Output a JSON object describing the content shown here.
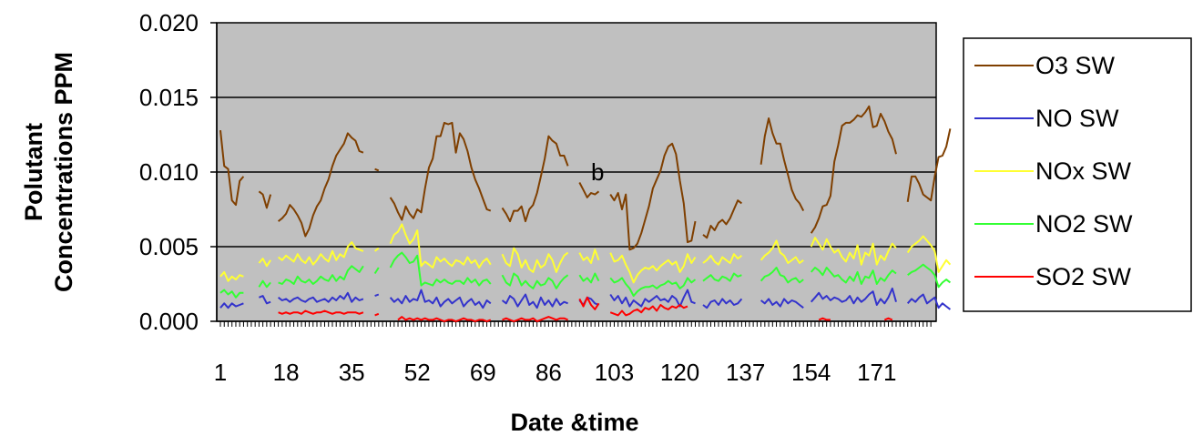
{
  "chart_data": {
    "type": "line",
    "title": "",
    "xlabel": "Date &time",
    "ylabel_line1": "Polutant",
    "ylabel_line2": "Concentrations PPM",
    "ylim": [
      0,
      0.02
    ],
    "xlim": [
      1,
      185
    ],
    "y_ticks": [
      "0.000",
      "0.005",
      "0.010",
      "0.015",
      "0.020"
    ],
    "y_tick_values": [
      0,
      0.005,
      0.01,
      0.015,
      0.02
    ],
    "x_tick_labels": [
      "1",
      "18",
      "35",
      "52",
      "69",
      "86",
      "103",
      "120",
      "137",
      "154",
      "171"
    ],
    "x_tick_values": [
      1,
      18,
      35,
      52,
      69,
      86,
      103,
      120,
      137,
      154,
      171
    ],
    "grid": "horizontal",
    "plot_background": "#c0c0c0",
    "legend_position": "right",
    "annotation": "b",
    "annotation_x": 97,
    "annotation_y": 0.01,
    "series": [
      {
        "name": "O3    SW",
        "color": "#7f3f00",
        "values": [
          0.0128,
          0.0104,
          0.0102,
          0.0081,
          0.0078,
          0.0094,
          0.0097,
          null,
          null,
          null,
          0.0087,
          0.0085,
          0.0076,
          0.0085,
          null,
          0.0067,
          0.0069,
          0.0072,
          0.0078,
          0.0075,
          0.0071,
          0.0066,
          0.0057,
          0.0062,
          0.0071,
          0.0077,
          0.0081,
          0.0089,
          0.0095,
          0.0104,
          0.0111,
          0.0115,
          0.0119,
          0.0126,
          0.0123,
          0.0121,
          0.0114,
          0.0113,
          null,
          null,
          0.0102,
          0.0101,
          null,
          null,
          0.0083,
          0.0079,
          0.0073,
          0.0068,
          0.0077,
          0.0072,
          0.0069,
          0.0075,
          0.0073,
          0.0089,
          0.0103,
          0.0109,
          0.0124,
          0.0124,
          0.0133,
          0.0132,
          0.0133,
          0.0113,
          0.0126,
          0.0122,
          0.0114,
          0.0103,
          0.0095,
          0.0089,
          0.0082,
          0.0075,
          0.0074,
          null,
          null,
          0.0076,
          0.0072,
          0.0067,
          0.0074,
          0.0074,
          0.0077,
          0.0067,
          0.0075,
          0.0078,
          0.0086,
          0.0097,
          0.0109,
          0.0124,
          0.0121,
          0.0119,
          0.0111,
          0.0111,
          0.0104,
          null,
          null,
          0.0093,
          0.0088,
          0.0083,
          0.0086,
          0.0085,
          0.0087,
          null,
          null,
          0.0085,
          0.0081,
          0.0086,
          0.0075,
          0.0085,
          0.0048,
          0.0049,
          0.0052,
          0.0059,
          0.0068,
          0.0077,
          0.0089,
          0.0095,
          0.0101,
          0.0111,
          0.0117,
          0.0119,
          0.0112,
          0.0094,
          0.0079,
          0.0053,
          0.0054,
          0.0067,
          null,
          0.0058,
          0.0056,
          0.0064,
          0.0061,
          0.0066,
          0.0068,
          0.0065,
          0.0069,
          0.0075,
          0.0081,
          0.0079,
          null,
          null,
          null,
          null,
          0.0105,
          0.0124,
          0.0136,
          0.0126,
          0.0119,
          0.0119,
          0.0108,
          0.0098,
          0.0088,
          0.0082,
          0.0079,
          0.0074,
          null,
          0.0059,
          0.0063,
          0.0069,
          0.0077,
          0.0078,
          0.0084,
          0.0107,
          0.0118,
          0.0131,
          0.0133,
          0.0133,
          0.0135,
          0.0138,
          0.0137,
          0.014,
          0.0144,
          0.013,
          0.0131,
          0.0139,
          0.0134,
          0.0127,
          0.0122,
          0.0112,
          null,
          null,
          0.008,
          0.0097,
          0.0097,
          0.0092,
          0.0085,
          0.0083,
          0.0081,
          0.0097,
          0.011,
          0.0111,
          0.0117,
          0.0129
        ]
      },
      {
        "name": "NO   SW",
        "color": "#3333cc",
        "values": [
          0.0009,
          0.0012,
          0.0009,
          0.0012,
          0.001,
          0.0011,
          0.0012,
          null,
          null,
          null,
          0.0016,
          0.0017,
          0.0012,
          0.0013,
          null,
          0.0016,
          0.0014,
          0.0015,
          0.0013,
          0.0015,
          0.0016,
          0.0014,
          0.0013,
          0.0015,
          0.0016,
          0.0013,
          0.0014,
          0.0015,
          0.0013,
          0.0016,
          0.0014,
          0.0017,
          0.0015,
          0.0019,
          0.0013,
          0.0016,
          0.0014,
          0.0015,
          null,
          null,
          0.0017,
          0.0018,
          null,
          null,
          0.0016,
          0.0013,
          0.0015,
          0.0012,
          0.0017,
          0.0013,
          0.0015,
          0.0014,
          0.0021,
          0.0013,
          0.0014,
          0.0012,
          0.0016,
          0.001,
          0.0013,
          0.0015,
          0.0012,
          0.0014,
          0.0016,
          0.001,
          0.0013,
          0.0015,
          0.0011,
          0.0013,
          0.0009,
          0.0014,
          0.0012,
          null,
          null,
          0.0014,
          0.0012,
          0.0017,
          0.0015,
          0.001,
          0.0014,
          0.0018,
          0.0011,
          0.0013,
          0.0009,
          0.0016,
          0.0011,
          0.0014,
          0.001,
          0.0015,
          0.0011,
          0.0013,
          0.0012,
          null,
          null,
          0.0014,
          0.0011,
          0.0016,
          0.0015,
          0.0012,
          0.0011,
          null,
          null,
          0.0018,
          0.0014,
          0.0017,
          0.0012,
          0.0016,
          0.001,
          0.0014,
          0.0012,
          0.001,
          0.0015,
          0.0013,
          0.0015,
          0.0017,
          0.0014,
          0.0015,
          0.0013,
          0.0017,
          0.0015,
          0.001,
          0.0016,
          0.0021,
          0.0013,
          0.0012,
          null,
          0.0011,
          0.0009,
          0.0013,
          0.0014,
          0.0011,
          0.0015,
          0.0012,
          0.0014,
          0.0011,
          0.0012,
          0.0015,
          null,
          null,
          null,
          null,
          0.0014,
          0.0012,
          0.0015,
          0.0011,
          0.0013,
          0.001,
          0.0015,
          0.0012,
          0.0014,
          0.0013,
          0.0011,
          0.0009,
          null,
          0.0013,
          0.0016,
          0.0019,
          0.0015,
          0.0017,
          0.0014,
          0.0016,
          0.0015,
          0.0013,
          0.0014,
          0.0017,
          0.0012,
          0.0016,
          0.0013,
          0.0015,
          0.0018,
          0.002,
          0.0011,
          0.0015,
          0.0012,
          0.0016,
          0.0022,
          0.0013,
          null,
          null,
          0.0012,
          0.0015,
          0.0013,
          0.0016,
          0.0018,
          0.0012,
          0.0014,
          0.0016,
          0.0009,
          0.0012,
          0.001,
          0.0008
        ]
      },
      {
        "name": "NOx SW",
        "color": "#ffff33",
        "values": [
          0.003,
          0.0033,
          0.0027,
          0.003,
          0.0028,
          0.0031,
          0.003,
          null,
          null,
          null,
          0.0039,
          0.0042,
          0.0037,
          0.0041,
          null,
          0.0043,
          0.0041,
          0.0044,
          0.0042,
          0.004,
          0.0045,
          0.0041,
          0.0039,
          0.0043,
          0.0038,
          0.0041,
          0.0045,
          0.0042,
          0.004,
          0.0047,
          0.0041,
          0.0045,
          0.0043,
          0.005,
          0.0053,
          0.0049,
          0.0048,
          0.0047,
          null,
          null,
          0.0047,
          0.0049,
          null,
          null,
          0.0052,
          0.0058,
          0.006,
          0.0065,
          0.0058,
          0.0052,
          0.0055,
          0.0061,
          0.0037,
          0.004,
          0.0038,
          0.0036,
          0.0043,
          0.004,
          0.0042,
          0.0039,
          0.0037,
          0.0041,
          0.004,
          0.0038,
          0.0043,
          0.0039,
          0.0041,
          0.0036,
          0.004,
          0.0042,
          0.0038,
          null,
          null,
          0.0045,
          0.0039,
          0.0037,
          0.0049,
          0.0045,
          0.0036,
          0.0041,
          0.0035,
          0.0033,
          0.0041,
          0.0036,
          0.0038,
          0.0045,
          0.0041,
          0.0033,
          0.0039,
          0.0044,
          0.0046,
          null,
          null,
          0.0046,
          0.0041,
          0.0043,
          0.0039,
          0.0048,
          0.0041,
          null,
          null,
          0.0046,
          0.004,
          0.0041,
          0.0044,
          0.0038,
          0.0033,
          0.0026,
          0.0031,
          0.0034,
          0.0036,
          0.0035,
          0.0037,
          0.0034,
          0.0037,
          0.0039,
          0.0041,
          0.0038,
          0.004,
          0.0033,
          0.0037,
          0.0045,
          0.0039,
          0.0043,
          null,
          0.0039,
          0.0041,
          0.0044,
          0.004,
          0.0038,
          0.0043,
          0.0041,
          0.0039,
          0.0045,
          0.0042,
          0.0044,
          null,
          null,
          null,
          null,
          0.0041,
          0.0044,
          0.0046,
          0.0049,
          0.0054,
          0.0046,
          0.0044,
          0.0039,
          0.0041,
          0.0043,
          0.0039,
          0.0041,
          null,
          0.005,
          0.0056,
          0.0052,
          0.0048,
          0.0055,
          0.005,
          0.0046,
          0.0048,
          0.0043,
          0.004,
          0.0046,
          0.0042,
          0.0051,
          0.0038,
          0.0046,
          0.0044,
          0.0052,
          0.0038,
          0.0044,
          0.0041,
          0.0047,
          0.0052,
          0.0049,
          null,
          null,
          0.0046,
          0.005,
          0.0052,
          0.0054,
          0.0057,
          0.0054,
          0.0051,
          0.0047,
          0.0033,
          0.0037,
          0.0041,
          0.0038
        ]
      },
      {
        "name": "NO2 SW",
        "color": "#33ff33",
        "values": [
          0.0019,
          0.0021,
          0.0018,
          0.002,
          0.0016,
          0.0019,
          0.0019,
          null,
          null,
          null,
          0.0023,
          0.0027,
          0.0023,
          0.0026,
          null,
          0.0026,
          0.0025,
          0.0028,
          0.0027,
          0.0025,
          0.003,
          0.0027,
          0.0026,
          0.0028,
          0.0025,
          0.0027,
          0.003,
          0.0028,
          0.0027,
          0.0031,
          0.0027,
          0.003,
          0.0028,
          0.0034,
          0.0037,
          0.0035,
          0.0033,
          0.0037,
          null,
          null,
          0.0032,
          0.0036,
          null,
          null,
          0.0036,
          0.0041,
          0.0044,
          0.0046,
          0.0043,
          0.0039,
          0.004,
          0.0044,
          0.0024,
          0.0026,
          0.0025,
          0.0024,
          0.0028,
          0.0026,
          0.0028,
          0.0026,
          0.0025,
          0.0027,
          0.0027,
          0.0025,
          0.0029,
          0.0026,
          0.0028,
          0.0024,
          0.0027,
          0.0028,
          0.0025,
          null,
          null,
          0.0031,
          0.0026,
          0.0024,
          0.0032,
          0.003,
          0.0024,
          0.0027,
          0.0024,
          0.0022,
          0.0027,
          0.0024,
          0.0025,
          0.0029,
          0.0027,
          0.0022,
          0.0026,
          0.0029,
          0.0031,
          null,
          null,
          0.0031,
          0.0027,
          0.0029,
          0.0026,
          0.0032,
          0.0027,
          null,
          null,
          0.0029,
          0.0026,
          0.0027,
          0.0029,
          0.0025,
          0.0022,
          0.0017,
          0.002,
          0.0022,
          0.0023,
          0.0023,
          0.0024,
          0.0022,
          0.0024,
          0.0025,
          0.0027,
          0.0025,
          0.0026,
          0.0022,
          0.0024,
          0.0029,
          0.0026,
          0.0028,
          null,
          0.0027,
          0.0029,
          0.0031,
          0.0028,
          0.0027,
          0.003,
          0.0029,
          0.0027,
          0.0032,
          0.003,
          0.0031,
          null,
          null,
          null,
          null,
          0.0027,
          0.003,
          0.0031,
          0.0033,
          0.0036,
          0.0031,
          0.003,
          0.0026,
          0.0028,
          0.0029,
          0.0026,
          0.0028,
          null,
          0.0033,
          0.0036,
          0.0034,
          0.0031,
          0.0036,
          0.0033,
          0.003,
          0.0031,
          0.0028,
          0.0026,
          0.003,
          0.0027,
          0.0033,
          0.0025,
          0.003,
          0.0029,
          0.0034,
          0.0025,
          0.0029,
          0.0027,
          0.0031,
          0.0034,
          0.0032,
          null,
          null,
          0.0031,
          0.0033,
          0.0034,
          0.0036,
          0.0038,
          0.0036,
          0.0034,
          0.0031,
          0.0023,
          0.0026,
          0.0028,
          0.0026
        ]
      },
      {
        "name": "SO2 SW",
        "color": "#ff0000",
        "values": [
          null,
          null,
          null,
          null,
          null,
          null,
          null,
          null,
          null,
          null,
          null,
          null,
          null,
          null,
          null,
          0.0006,
          0.0005,
          0.0006,
          0.0005,
          0.0006,
          0.0006,
          0.0005,
          0.0007,
          0.0006,
          0.0005,
          0.0006,
          0.0006,
          0.0007,
          0.0006,
          0.0005,
          0.0006,
          0.0006,
          0.0005,
          0.0006,
          0.0006,
          0.0006,
          0.0005,
          0.0006,
          null,
          null,
          0.0004,
          0.0005,
          null,
          null,
          null,
          null,
          0.0001,
          0.0003,
          0.0001,
          0.0002,
          0.0001,
          0.0002,
          0.0001,
          0.0002,
          0.0001,
          0.0001,
          0.0002,
          0.0001,
          0.0,
          0.0001,
          0.0001,
          0.0,
          0.0001,
          0.0002,
          0.0001,
          0.0001,
          0.0,
          0.0001,
          0.0001,
          0.0,
          0.0001,
          null,
          null,
          0.0001,
          0.0002,
          0.0001,
          0.0,
          0.0001,
          0.0002,
          0.0001,
          0.0001,
          0.0002,
          0.0,
          0.0001,
          0.0002,
          0.0003,
          0.0002,
          0.0001,
          0.0002,
          0.0002,
          0.0001,
          null,
          null,
          0.0015,
          0.001,
          0.0016,
          0.0011,
          0.0008,
          0.0012,
          null,
          null,
          0.0006,
          0.0005,
          0.0004,
          0.0007,
          0.0004,
          0.0005,
          0.0007,
          0.0008,
          0.0006,
          0.0009,
          0.0008,
          0.001,
          0.0007,
          0.0011,
          0.0009,
          0.0008,
          0.001,
          0.0009,
          0.0011,
          0.0009,
          0.001,
          null,
          null,
          null,
          null,
          null,
          null,
          null,
          null,
          null,
          null,
          null,
          null,
          null,
          null,
          null,
          null,
          null,
          null,
          null,
          null,
          null,
          null,
          null,
          null,
          null,
          null,
          null,
          null,
          null,
          null,
          null,
          null,
          null,
          0.0001,
          0.0002,
          0.0001,
          0.0001,
          null,
          null,
          null,
          null,
          null,
          null,
          null,
          null,
          null,
          null,
          null,
          null,
          null,
          0.0001,
          0.0002,
          0.0001,
          null,
          null,
          null,
          null,
          null,
          null,
          null,
          null,
          null,
          null,
          null,
          null,
          null,
          null,
          null,
          null,
          null,
          null,
          null,
          null
        ]
      }
    ]
  }
}
